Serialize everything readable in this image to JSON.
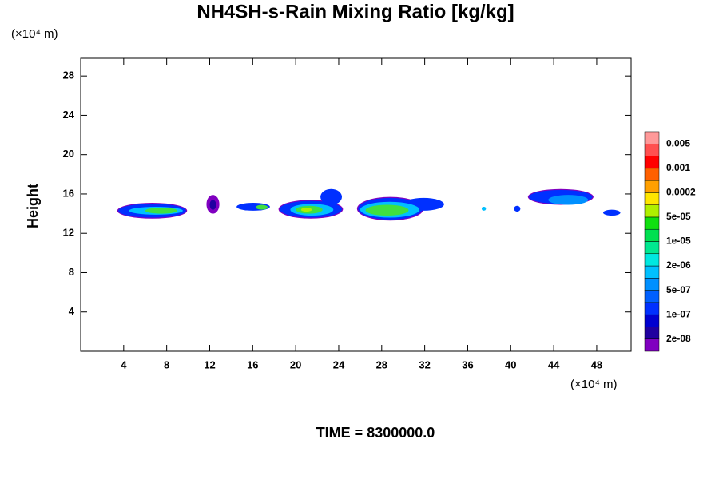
{
  "chart_data": {
    "type": "contour",
    "title": "NH4SH-s-Rain Mixing Ratio [kg/kg]",
    "y_unit": "(×10⁴ m)",
    "x_unit": "(×10⁴ m)",
    "ylabel": "Height",
    "footer": "TIME = 8300000.0",
    "xlim": [
      0,
      51.2
    ],
    "ylim": [
      0,
      29.8
    ],
    "xticks": [
      4,
      8,
      12,
      16,
      20,
      24,
      28,
      32,
      36,
      40,
      44,
      48
    ],
    "yticks": [
      4,
      8,
      12,
      16,
      20,
      24,
      28
    ],
    "colorbar": {
      "colors": [
        "#8000c0",
        "#2000a0",
        "#0000d0",
        "#0030ff",
        "#0060ff",
        "#0090ff",
        "#00c0ff",
        "#00e8e0",
        "#00e890",
        "#00e050",
        "#10e010",
        "#b0f000",
        "#ffe600",
        "#ffa000",
        "#ff6000",
        "#ff0000",
        "#ff5050",
        "#ff9999"
      ],
      "labels": [
        {
          "value": 2e-08,
          "label": "2e-08"
        },
        {
          "value": 1e-07,
          "label": "1e-07"
        },
        {
          "value": 5e-07,
          "label": "5e-07"
        },
        {
          "value": 2e-06,
          "label": "2e-06"
        },
        {
          "value": 1e-05,
          "label": "1e-05"
        },
        {
          "value": 5e-05,
          "label": "5e-05"
        },
        0.0002,
        0.001,
        0.005
      ]
    },
    "regions": [
      {
        "x": [
          3.4,
          9.9
        ],
        "y": [
          13.5,
          15.1
        ],
        "color": "#8000c0"
      },
      {
        "x": [
          3.5,
          9.8
        ],
        "y": [
          13.6,
          15.0
        ],
        "color": "#0030ff"
      },
      {
        "x": [
          4.5,
          9.5
        ],
        "y": [
          13.9,
          14.7
        ],
        "color": "#00c0ff"
      },
      {
        "x": [
          6.0,
          9.0
        ],
        "y": [
          14.0,
          14.6
        ],
        "color": "#40e040"
      },
      {
        "x": [
          11.7,
          12.9
        ],
        "y": [
          14.0,
          15.9
        ],
        "color": "#8000c0"
      },
      {
        "x": [
          12.0,
          12.6
        ],
        "y": [
          14.4,
          15.4
        ],
        "color": "#2000a0"
      },
      {
        "x": [
          14.5,
          17.6
        ],
        "y": [
          14.3,
          15.1
        ],
        "color": "#0030ff"
      },
      {
        "x": [
          16.3,
          17.4
        ],
        "y": [
          14.4,
          14.9
        ],
        "color": "#40e040"
      },
      {
        "x": [
          18.4,
          24.4
        ],
        "y": [
          13.5,
          15.4
        ],
        "color": "#8000c0"
      },
      {
        "x": [
          22.3,
          24.3
        ],
        "y": [
          14.9,
          16.5
        ],
        "color": "#0030ff"
      },
      {
        "x": [
          18.5,
          24.3
        ],
        "y": [
          13.6,
          15.3
        ],
        "color": "#0030ff"
      },
      {
        "x": [
          19.5,
          23.5
        ],
        "y": [
          13.8,
          15.0
        ],
        "color": "#00c0ff"
      },
      {
        "x": [
          20.0,
          22.5
        ],
        "y": [
          14.0,
          14.8
        ],
        "color": "#40e040"
      },
      {
        "x": [
          20.5,
          21.5
        ],
        "y": [
          14.2,
          14.6
        ],
        "color": "#b0f000"
      },
      {
        "x": [
          25.7,
          31.9
        ],
        "y": [
          13.3,
          15.7
        ],
        "color": "#8000c0"
      },
      {
        "x": [
          30.0,
          33.8
        ],
        "y": [
          14.3,
          15.6
        ],
        "color": "#0030ff"
      },
      {
        "x": [
          25.8,
          31.8
        ],
        "y": [
          13.4,
          15.6
        ],
        "color": "#0030ff"
      },
      {
        "x": [
          26.0,
          31.5
        ],
        "y": [
          13.6,
          15.2
        ],
        "color": "#00c0ff"
      },
      {
        "x": [
          26.5,
          30.5
        ],
        "y": [
          13.8,
          14.9
        ],
        "color": "#40e040"
      },
      {
        "x": [
          37.3,
          37.7
        ],
        "y": [
          14.3,
          14.7
        ],
        "color": "#00c0ff"
      },
      {
        "x": [
          40.3,
          40.9
        ],
        "y": [
          14.2,
          14.8
        ],
        "color": "#0030ff"
      },
      {
        "x": [
          41.6,
          47.7
        ],
        "y": [
          14.9,
          16.5
        ],
        "color": "#8000c0"
      },
      {
        "x": [
          41.7,
          47.6
        ],
        "y": [
          15.0,
          16.4
        ],
        "color": "#0030ff"
      },
      {
        "x": [
          43.5,
          47.2
        ],
        "y": [
          14.9,
          15.9
        ],
        "color": "#0090ff"
      },
      {
        "x": [
          48.6,
          50.2
        ],
        "y": [
          13.8,
          14.4
        ],
        "color": "#0030ff"
      }
    ]
  }
}
